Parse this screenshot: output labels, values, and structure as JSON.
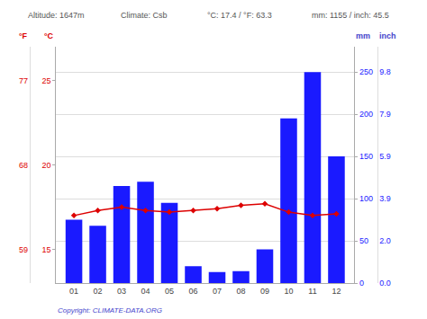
{
  "chart_data": {
    "type": "bar",
    "categories": [
      "01",
      "02",
      "03",
      "04",
      "05",
      "06",
      "07",
      "08",
      "09",
      "10",
      "11",
      "12"
    ],
    "series": [
      {
        "type": "bar",
        "color": "#1a1aff",
        "axis": "y",
        "values": [
          75,
          68,
          115,
          120,
          95,
          20,
          13,
          14,
          40,
          195,
          250,
          150
        ]
      },
      {
        "type": "line",
        "color": "#dd0000",
        "marker": "diamond",
        "axis": "y2",
        "values": [
          17.0,
          17.3,
          17.5,
          17.3,
          17.2,
          17.3,
          17.4,
          17.6,
          17.7,
          17.2,
          17.0,
          17.1
        ]
      }
    ],
    "ylim": [
      0,
      280
    ],
    "yticks": [
      0,
      50,
      100,
      150,
      200,
      250
    ],
    "y2lim": [
      13.0,
      27.0
    ],
    "y2ticks": [
      15,
      20,
      25
    ],
    "y3lim": [
      13.0,
      27.0
    ],
    "y3ticks": [
      {
        "value": 15,
        "label": "59"
      },
      {
        "value": 20,
        "label": "68"
      },
      {
        "value": 25,
        "label": "77"
      }
    ],
    "y4lim": [
      0,
      280
    ],
    "y4ticks": [
      {
        "value": 0,
        "label": "0.0"
      },
      {
        "value": 50,
        "label": "2.0"
      },
      {
        "value": 100,
        "label": "3.9"
      },
      {
        "value": 150,
        "label": "5.9"
      },
      {
        "value": 200,
        "label": "7.9"
      },
      {
        "value": 250,
        "label": "9.8"
      }
    ],
    "grid": true,
    "annotations": [
      {
        "text": "°F",
        "color": "#dd0000"
      },
      {
        "text": "°C",
        "color": "#dd0000"
      },
      {
        "text": "Altitude: 1647m",
        "color": "#555555"
      },
      {
        "text": "Climate: Csb",
        "color": "#555555"
      },
      {
        "text": "°C: 17.4 / °F: 63.3",
        "color": "#555555"
      },
      {
        "text": "mm: 1155 / inch: 45.5",
        "color": "#555555"
      },
      {
        "text": "mm",
        "color": "#4444cc"
      },
      {
        "text": "inch",
        "color": "#4444cc"
      },
      {
        "text": "Copyright: CLIMATE-DATA.ORG",
        "color": "#4444cc"
      }
    ]
  }
}
